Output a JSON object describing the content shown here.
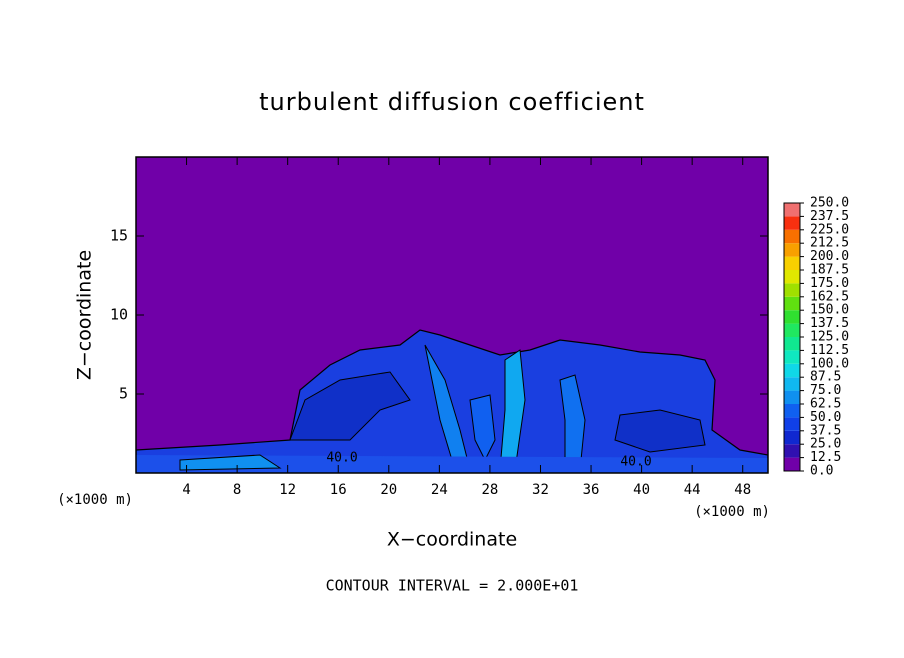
{
  "chart_data": {
    "type": "contour",
    "title": "turbulent diffusion coefficient",
    "x_label": "X−coordinate",
    "y_label": "Z−coordinate",
    "x_unit_labels": [
      "(×1000 m)",
      "(×1000 m)"
    ],
    "annotation": "CONTOUR INTERVAL = 2.000E+01",
    "contour_labels": [
      "40.0",
      "40.0"
    ],
    "xlim": [
      0,
      50
    ],
    "xticks": [
      4,
      8,
      12,
      16,
      20,
      24,
      28,
      32,
      36,
      40,
      44,
      48
    ],
    "ylim": [
      0,
      20
    ],
    "yticks": [
      5,
      10,
      15
    ],
    "background_color": "#7000a8",
    "colorbar": {
      "lim": [
        0,
        250
      ],
      "ticks": [
        {
          "value": 0,
          "label": "0.0"
        },
        {
          "value": 12.5,
          "label": "12.5"
        },
        {
          "value": 25,
          "label": "25.0"
        },
        {
          "value": 37.5,
          "label": "37.5"
        },
        {
          "value": 50,
          "label": "50.0"
        },
        {
          "value": 62.5,
          "label": "62.5"
        },
        {
          "value": 75,
          "label": "75.0"
        },
        {
          "value": 87.5,
          "label": "87.5"
        },
        {
          "value": 100,
          "label": "100.0"
        },
        {
          "value": 112.5,
          "label": "112.5"
        },
        {
          "value": 125,
          "label": "125.0"
        },
        {
          "value": 137.5,
          "label": "137.5"
        },
        {
          "value": 150,
          "label": "150.0"
        },
        {
          "value": 162.5,
          "label": "162.5"
        },
        {
          "value": 175,
          "label": "175.0"
        },
        {
          "value": 187.5,
          "label": "187.5"
        },
        {
          "value": 200,
          "label": "200.0"
        },
        {
          "value": 212.5,
          "label": "212.5"
        },
        {
          "value": 225,
          "label": "225.0"
        },
        {
          "value": 237.5,
          "label": "237.5"
        },
        {
          "value": 250,
          "label": "250.0"
        }
      ],
      "colors": [
        "#7000a8",
        "#3010b0",
        "#1028d0",
        "#1040e8",
        "#1060f0",
        "#1090f0",
        "#10b8f0",
        "#10d8e8",
        "#10e8c0",
        "#10e890",
        "#20e860",
        "#30e030",
        "#60e010",
        "#a0e000",
        "#e0e800",
        "#f8d000",
        "#f8a000",
        "#f87000",
        "#f83010",
        "#f07070"
      ]
    }
  }
}
